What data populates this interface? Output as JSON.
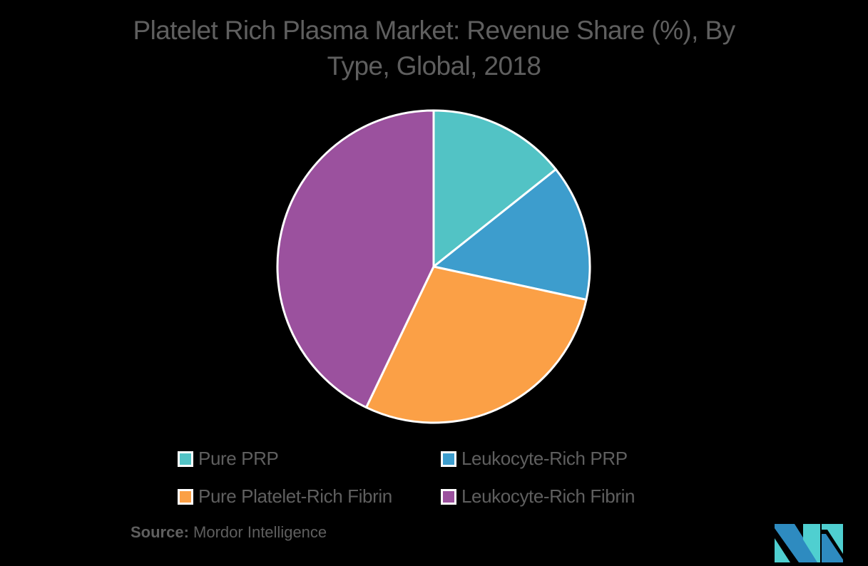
{
  "title": "Platelet Rich Plasma Market: Revenue Share (%), By Type, Global, 2018",
  "title_lines": [
    "Platelet Rich Plasma Market: Revenue Share (%), By",
    "Type, Global, 2018"
  ],
  "legend": [
    {
      "label": "Pure PRP",
      "color": "#52c3c5"
    },
    {
      "label": "Leukocyte-Rich PRP",
      "color": "#3d9dcd"
    },
    {
      "label": "Pure Platelet-Rich Fibrin",
      "color": "#fba046"
    },
    {
      "label": "Leukocyte-Rich Fibrin",
      "color": "#9b519e"
    }
  ],
  "source": {
    "prefix": "Source:",
    "name": "Mordor Intelligence"
  },
  "logo": {
    "icon": "mordor-intelligence-logo",
    "colors": [
      "#2e8bc0",
      "#4fcfd0"
    ]
  },
  "chart_data": {
    "type": "pie",
    "title": "Platelet Rich Plasma Market: Revenue Share (%), By Type, Global, 2018",
    "categories": [
      "Pure PRP",
      "Leukocyte-Rich PRP",
      "Pure Platelet-Rich Fibrin",
      "Leukocyte-Rich Fibrin"
    ],
    "values": [
      14.3,
      14.1,
      28.7,
      42.9
    ],
    "colors": [
      "#52c3c5",
      "#3d9dcd",
      "#fba046",
      "#9b519e"
    ],
    "start_angle": "12 o'clock, clockwise",
    "data_labels": false,
    "legend_position": "bottom",
    "source": "Mordor Intelligence"
  }
}
